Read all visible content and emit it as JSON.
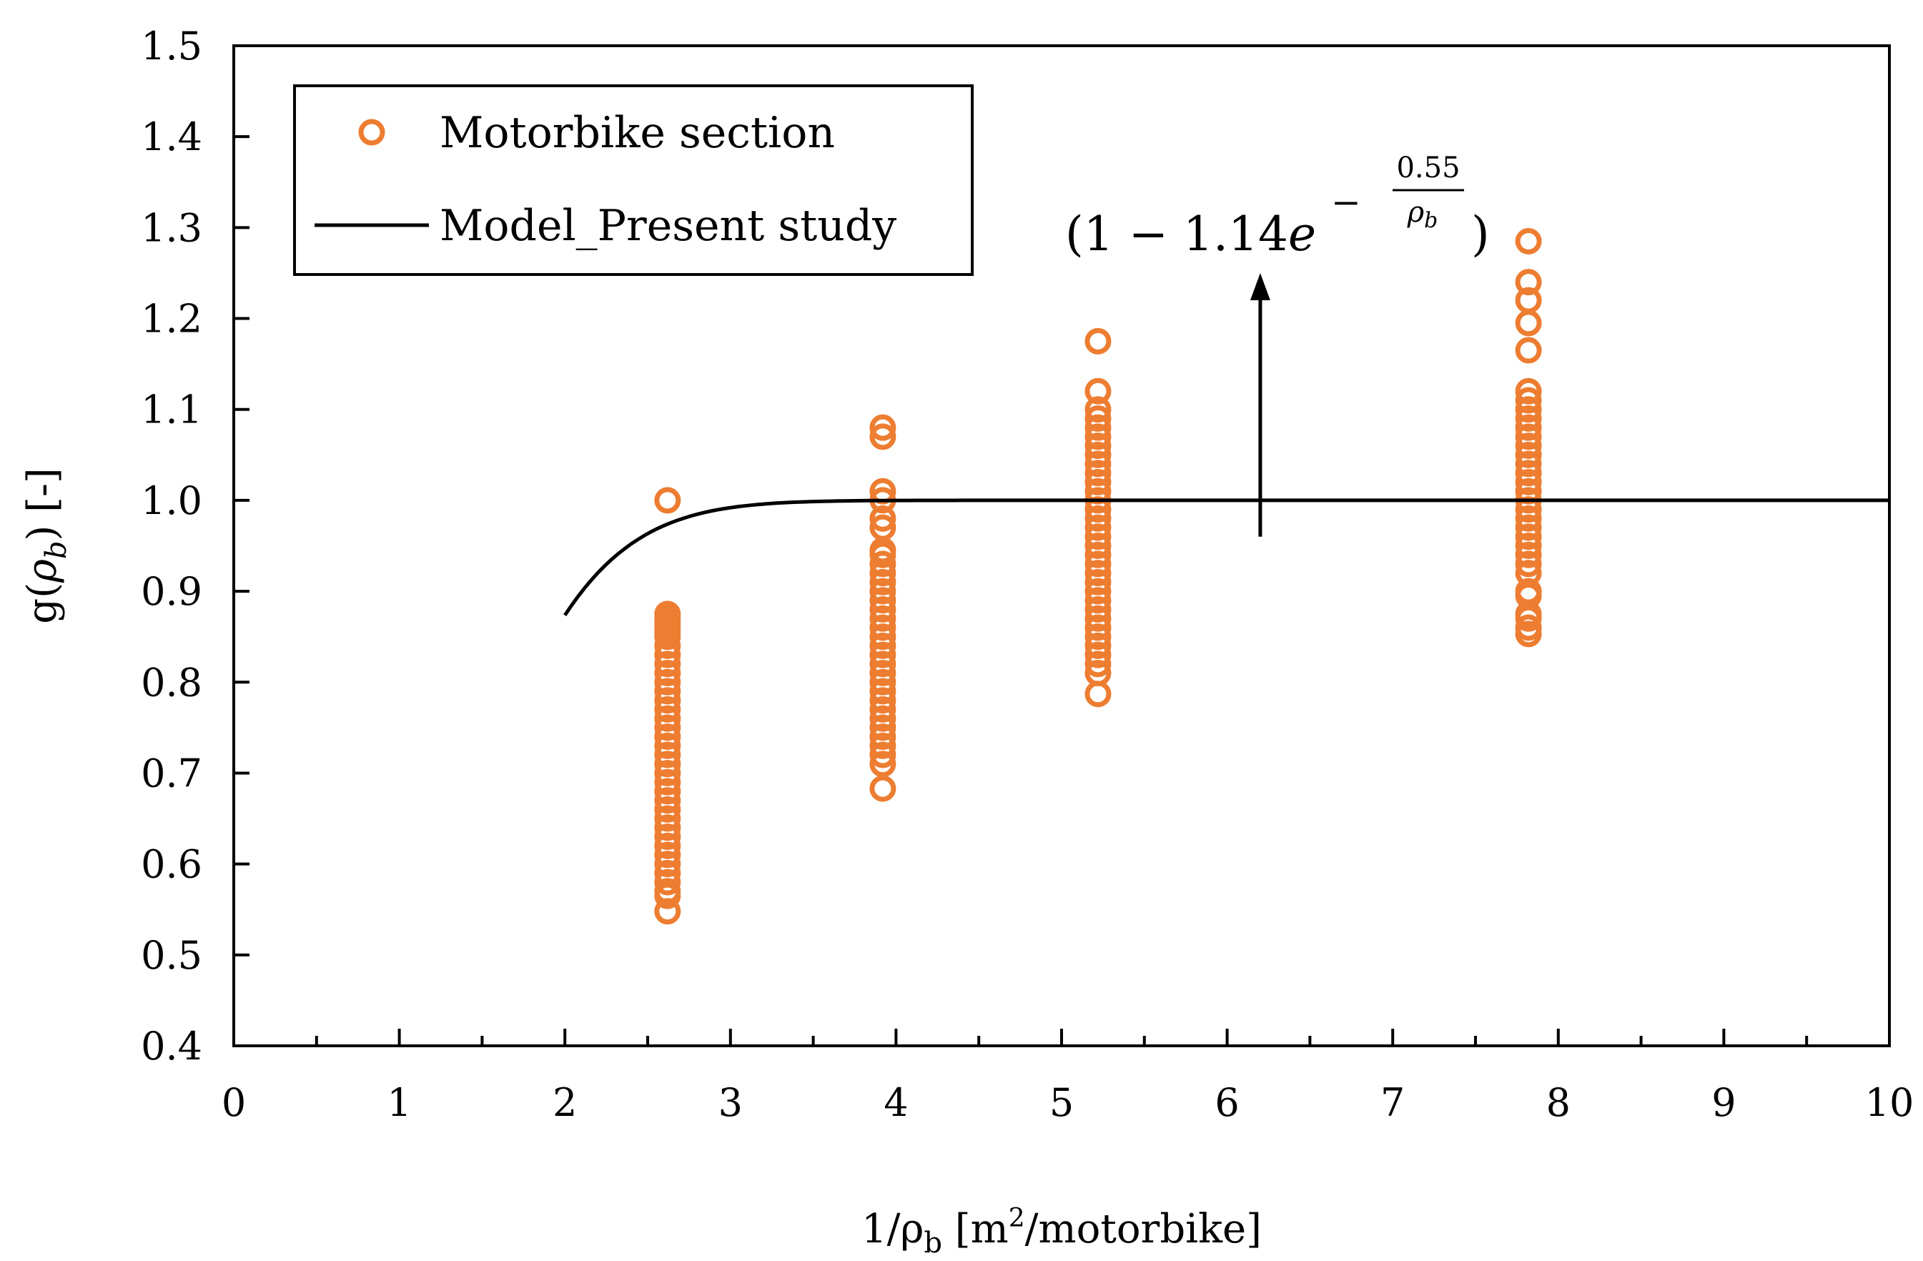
{
  "chart_data": {
    "type": "scatter",
    "xlabel": {
      "prefix": "1/",
      "rho": "ρ",
      "sub": "b",
      "unit_open": " [m",
      "sup": "2",
      "unit_close": "/motorbike]"
    },
    "ylabel": {
      "prefix": "g(",
      "rho": "ρ",
      "sub": "b",
      "suffix": ") [-]"
    },
    "xlim": [
      0,
      10
    ],
    "ylim": [
      0.4,
      1.5
    ],
    "xticks": [
      "0",
      "1",
      "2",
      "3",
      "4",
      "5",
      "6",
      "7",
      "8",
      "9",
      "10"
    ],
    "yticks": [
      "0.4",
      "0.5",
      "0.6",
      "0.7",
      "0.8",
      "0.9",
      "1.0",
      "1.1",
      "1.2",
      "1.3",
      "1.4",
      "1.5"
    ],
    "legend": {
      "position": "top-left",
      "entries": [
        {
          "label": "Motorbike section",
          "marker": "circle"
        },
        {
          "label": "Model_Present study",
          "marker": "line"
        }
      ]
    },
    "annotation": {
      "open": "(1 − 1.14",
      "e": "e",
      "minus": "−",
      "numerator": "0.55",
      "denominator": "ρ",
      "denominator_sub": "b",
      "close": ")",
      "arrow_from": {
        "x": 6.2,
        "y": 0.96
      },
      "arrow_to": {
        "x": 6.2,
        "y": 1.25
      }
    },
    "series": [
      {
        "name": "Motorbike section",
        "kind": "scatter",
        "color": "#ED7D31",
        "points": [
          [
            2.62,
            1.0
          ],
          [
            2.62,
            0.875
          ],
          [
            2.62,
            0.87
          ],
          [
            2.62,
            0.865
          ],
          [
            2.62,
            0.86
          ],
          [
            2.62,
            0.855
          ],
          [
            2.62,
            0.85
          ],
          [
            2.62,
            0.84
          ],
          [
            2.62,
            0.83
          ],
          [
            2.62,
            0.82
          ],
          [
            2.62,
            0.81
          ],
          [
            2.62,
            0.8
          ],
          [
            2.62,
            0.79
          ],
          [
            2.62,
            0.78
          ],
          [
            2.62,
            0.77
          ],
          [
            2.62,
            0.76
          ],
          [
            2.62,
            0.75
          ],
          [
            2.62,
            0.74
          ],
          [
            2.62,
            0.73
          ],
          [
            2.62,
            0.72
          ],
          [
            2.62,
            0.71
          ],
          [
            2.62,
            0.7
          ],
          [
            2.62,
            0.69
          ],
          [
            2.62,
            0.68
          ],
          [
            2.62,
            0.67
          ],
          [
            2.62,
            0.66
          ],
          [
            2.62,
            0.65
          ],
          [
            2.62,
            0.64
          ],
          [
            2.62,
            0.63
          ],
          [
            2.62,
            0.62
          ],
          [
            2.62,
            0.61
          ],
          [
            2.62,
            0.6
          ],
          [
            2.62,
            0.59
          ],
          [
            2.62,
            0.58
          ],
          [
            2.62,
            0.57
          ],
          [
            2.62,
            0.565
          ],
          [
            2.62,
            0.548
          ],
          [
            3.92,
            1.08
          ],
          [
            3.92,
            1.07
          ],
          [
            3.92,
            1.01
          ],
          [
            3.92,
            1.0
          ],
          [
            3.92,
            0.98
          ],
          [
            3.92,
            0.97
          ],
          [
            3.92,
            0.945
          ],
          [
            3.92,
            0.94
          ],
          [
            3.92,
            0.93
          ],
          [
            3.92,
            0.92
          ],
          [
            3.92,
            0.91
          ],
          [
            3.92,
            0.9
          ],
          [
            3.92,
            0.89
          ],
          [
            3.92,
            0.88
          ],
          [
            3.92,
            0.87
          ],
          [
            3.92,
            0.86
          ],
          [
            3.92,
            0.85
          ],
          [
            3.92,
            0.84
          ],
          [
            3.92,
            0.83
          ],
          [
            3.92,
            0.82
          ],
          [
            3.92,
            0.81
          ],
          [
            3.92,
            0.8
          ],
          [
            3.92,
            0.79
          ],
          [
            3.92,
            0.78
          ],
          [
            3.92,
            0.77
          ],
          [
            3.92,
            0.76
          ],
          [
            3.92,
            0.75
          ],
          [
            3.92,
            0.74
          ],
          [
            3.92,
            0.73
          ],
          [
            3.92,
            0.72
          ],
          [
            3.92,
            0.71
          ],
          [
            3.92,
            0.683
          ],
          [
            5.22,
            1.175
          ],
          [
            5.22,
            1.12
          ],
          [
            5.22,
            1.1
          ],
          [
            5.22,
            1.09
          ],
          [
            5.22,
            1.08
          ],
          [
            5.22,
            1.07
          ],
          [
            5.22,
            1.06
          ],
          [
            5.22,
            1.05
          ],
          [
            5.22,
            1.04
          ],
          [
            5.22,
            1.03
          ],
          [
            5.22,
            1.02
          ],
          [
            5.22,
            1.01
          ],
          [
            5.22,
            1.0
          ],
          [
            5.22,
            0.99
          ],
          [
            5.22,
            0.98
          ],
          [
            5.22,
            0.97
          ],
          [
            5.22,
            0.96
          ],
          [
            5.22,
            0.95
          ],
          [
            5.22,
            0.94
          ],
          [
            5.22,
            0.93
          ],
          [
            5.22,
            0.92
          ],
          [
            5.22,
            0.91
          ],
          [
            5.22,
            0.9
          ],
          [
            5.22,
            0.89
          ],
          [
            5.22,
            0.88
          ],
          [
            5.22,
            0.87
          ],
          [
            5.22,
            0.86
          ],
          [
            5.22,
            0.85
          ],
          [
            5.22,
            0.84
          ],
          [
            5.22,
            0.83
          ],
          [
            5.22,
            0.82
          ],
          [
            5.22,
            0.81
          ],
          [
            5.22,
            0.787
          ],
          [
            7.82,
            1.285
          ],
          [
            7.82,
            1.24
          ],
          [
            7.82,
            1.22
          ],
          [
            7.82,
            1.195
          ],
          [
            7.82,
            1.165
          ],
          [
            7.82,
            1.12
          ],
          [
            7.82,
            1.11
          ],
          [
            7.82,
            1.1
          ],
          [
            7.82,
            1.09
          ],
          [
            7.82,
            1.08
          ],
          [
            7.82,
            1.07
          ],
          [
            7.82,
            1.06
          ],
          [
            7.82,
            1.05
          ],
          [
            7.82,
            1.04
          ],
          [
            7.82,
            1.03
          ],
          [
            7.82,
            1.02
          ],
          [
            7.82,
            1.01
          ],
          [
            7.82,
            1.0
          ],
          [
            7.82,
            0.99
          ],
          [
            7.82,
            0.98
          ],
          [
            7.82,
            0.97
          ],
          [
            7.82,
            0.96
          ],
          [
            7.82,
            0.95
          ],
          [
            7.82,
            0.94
          ],
          [
            7.82,
            0.93
          ],
          [
            7.82,
            0.92
          ],
          [
            7.82,
            0.9
          ],
          [
            7.82,
            0.895
          ],
          [
            7.82,
            0.875
          ],
          [
            7.82,
            0.87
          ],
          [
            7.82,
            0.86
          ],
          [
            7.82,
            0.853
          ]
        ]
      },
      {
        "name": "Model_Present study",
        "kind": "line",
        "color": "#000000",
        "formula": {
          "a": 1.14,
          "b": 0.55
        },
        "x_range": [
          2,
          10
        ]
      }
    ]
  }
}
